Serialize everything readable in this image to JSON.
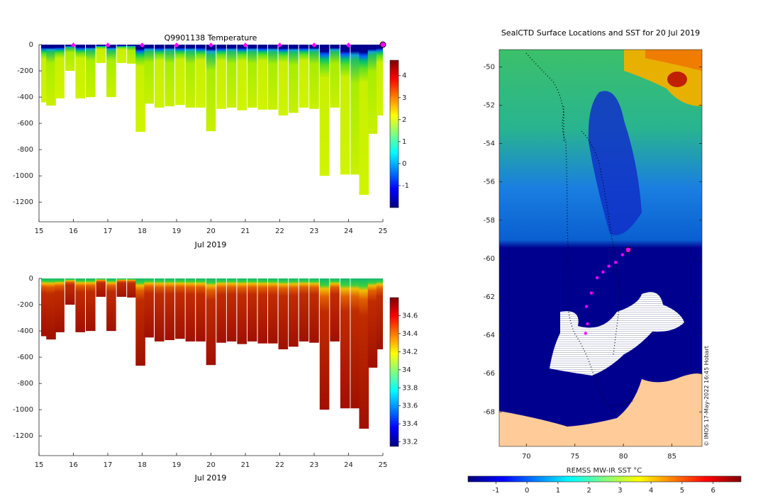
{
  "chart_data": [
    {
      "type": "heatmap",
      "title": "Q9901138  Temperature",
      "xlabel": "Jul 2019",
      "ylabel": "",
      "xlim": [
        15,
        25
      ],
      "ylim": [
        -1350,
        0
      ],
      "x_ticks": [
        "15",
        "16",
        "17",
        "18",
        "19",
        "20",
        "21",
        "22",
        "23",
        "24",
        "25"
      ],
      "y_ticks": [
        "0",
        "-200",
        "-400",
        "-600",
        "-800",
        "-1000",
        "-1200"
      ],
      "colorbar": {
        "min": -2,
        "max": 4.7,
        "ticks": [
          "-1",
          "0",
          "1",
          "2",
          "3",
          "4"
        ]
      },
      "profile_markers_x": [
        16,
        17,
        18,
        19,
        20,
        21,
        22,
        23,
        24
      ],
      "current_position_x": 25,
      "profiles": [
        {
          "x": 15.2,
          "depth": 440
        },
        {
          "x": 15.35,
          "depth": 465
        },
        {
          "x": 15.6,
          "depth": 410
        },
        {
          "x": 15.9,
          "depth": 200
        },
        {
          "x": 16.2,
          "depth": 410
        },
        {
          "x": 16.5,
          "depth": 400
        },
        {
          "x": 16.8,
          "depth": 140
        },
        {
          "x": 17.1,
          "depth": 400
        },
        {
          "x": 17.4,
          "depth": 140
        },
        {
          "x": 17.7,
          "depth": 145
        },
        {
          "x": 17.95,
          "depth": 665
        },
        {
          "x": 18.2,
          "depth": 450
        },
        {
          "x": 18.5,
          "depth": 480
        },
        {
          "x": 18.8,
          "depth": 470
        },
        {
          "x": 19.1,
          "depth": 460
        },
        {
          "x": 19.4,
          "depth": 480
        },
        {
          "x": 19.7,
          "depth": 480
        },
        {
          "x": 20.0,
          "depth": 660
        },
        {
          "x": 20.3,
          "depth": 490
        },
        {
          "x": 20.6,
          "depth": 480
        },
        {
          "x": 20.9,
          "depth": 500
        },
        {
          "x": 21.2,
          "depth": 480
        },
        {
          "x": 21.5,
          "depth": 495
        },
        {
          "x": 21.8,
          "depth": 495
        },
        {
          "x": 22.1,
          "depth": 540
        },
        {
          "x": 22.4,
          "depth": 520
        },
        {
          "x": 22.7,
          "depth": 480
        },
        {
          "x": 23.0,
          "depth": 490
        },
        {
          "x": 23.3,
          "depth": 1000
        },
        {
          "x": 23.6,
          "depth": 480
        },
        {
          "x": 23.9,
          "depth": 990
        },
        {
          "x": 24.2,
          "depth": 990
        },
        {
          "x": 24.45,
          "depth": 1145
        },
        {
          "x": 24.7,
          "depth": 680
        },
        {
          "x": 24.95,
          "depth": 540
        }
      ]
    },
    {
      "type": "heatmap",
      "title": "",
      "xlabel": "Jul 2019",
      "ylabel": "",
      "xlim": [
        15,
        25
      ],
      "ylim": [
        -1350,
        0
      ],
      "x_ticks": [
        "15",
        "16",
        "17",
        "18",
        "19",
        "20",
        "21",
        "22",
        "23",
        "24",
        "25"
      ],
      "y_ticks": [
        "0",
        "-200",
        "-400",
        "-600",
        "-800",
        "-1000",
        "-1200"
      ],
      "colorbar": {
        "min": 33.15,
        "max": 34.8,
        "ticks": [
          "33.2",
          "33.4",
          "33.6",
          "33.8",
          "34",
          "34.2",
          "34.4",
          "34.6"
        ]
      },
      "profiles_same_as_above": true
    },
    {
      "type": "heatmap",
      "title": "SealCTD Surface Locations and SST for 20 Jul 2019",
      "xlabel": "",
      "ylabel": "",
      "xlim": [
        67.2,
        88.1
      ],
      "ylim": [
        -69.8,
        -49.1
      ],
      "x_ticks": [
        "70",
        "75",
        "80",
        "85"
      ],
      "y_ticks": [
        "-50",
        "-52",
        "-54",
        "-56",
        "-58",
        "-60",
        "-62",
        "-64",
        "-66",
        "-68"
      ],
      "colorbar_label": "REMSS MW-IR SST °C",
      "colorbar": {
        "min": -1.9,
        "max": 6.9,
        "ticks": [
          "-1",
          "0",
          "1",
          "2",
          "3",
          "4",
          "5",
          "6"
        ]
      },
      "recent_positions": [
        {
          "lon": 76.1,
          "lat": -63.9
        },
        {
          "lon": 76.3,
          "lat": -63.4
        },
        {
          "lon": 76.2,
          "lat": -62.5
        },
        {
          "lon": 76.7,
          "lat": -61.8
        },
        {
          "lon": 77.3,
          "lat": -61.0
        },
        {
          "lon": 77.9,
          "lat": -60.7
        },
        {
          "lon": 78.5,
          "lat": -60.4
        },
        {
          "lon": 79.2,
          "lat": -60.2
        },
        {
          "lon": 79.9,
          "lat": -59.8
        }
      ],
      "current_position": {
        "lon": 80.5,
        "lat": -59.55
      },
      "credit": "© IMOS 17-May-2022 16:45 Hobart"
    }
  ]
}
